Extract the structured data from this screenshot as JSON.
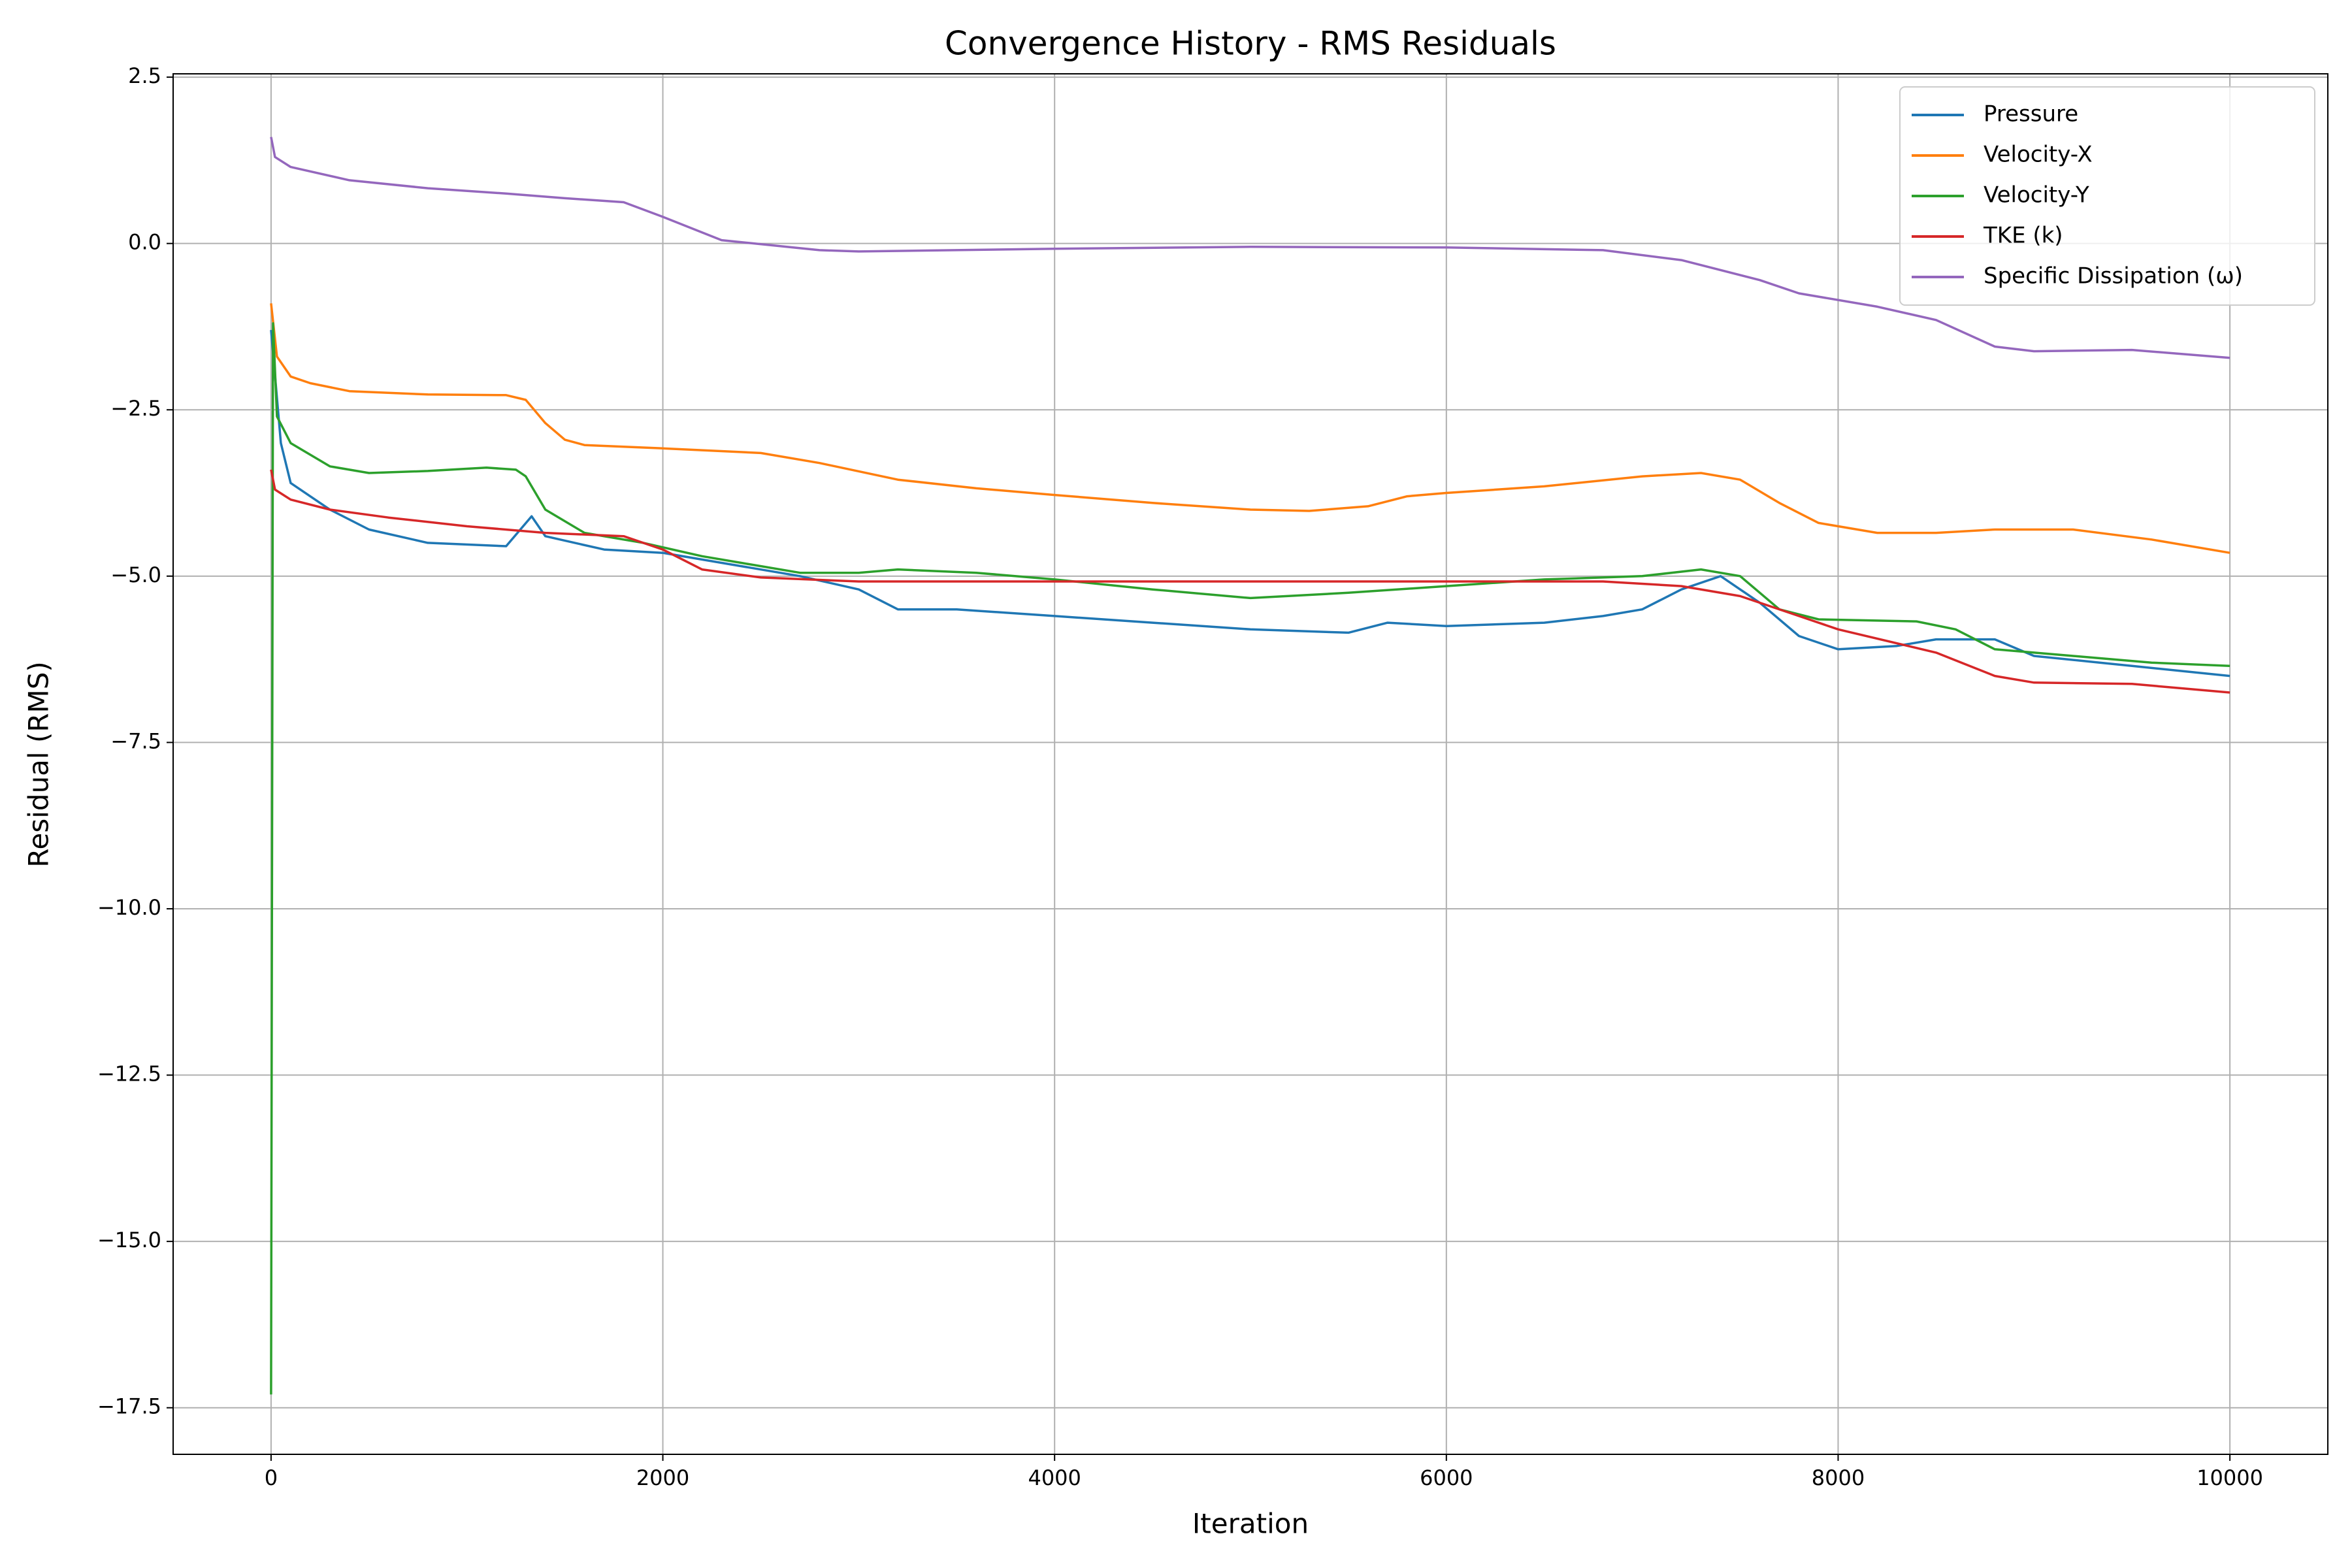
{
  "chart_data": {
    "type": "line",
    "title": "Convergence History - RMS Residuals",
    "x_label": "Iteration",
    "y_label": "Residual (RMS)",
    "xlim": [
      -500,
      10500
    ],
    "ylim": [
      -18.2,
      2.55
    ],
    "xticks": [
      0,
      2000,
      4000,
      6000,
      8000,
      10000
    ],
    "yticks": [
      2.5,
      {
        "value": 0,
        "label": "0.0"
      },
      {
        "value": -2.5,
        "label": "−2.5"
      },
      {
        "value": -5,
        "label": "−5.0"
      },
      {
        "value": -7.5,
        "label": "−7.5"
      },
      {
        "value": -10,
        "label": "−10.0"
      },
      {
        "value": -12.5,
        "label": "−12.5"
      },
      {
        "value": -15,
        "label": "−15.0"
      },
      {
        "value": -17.5,
        "label": "−17.5"
      }
    ],
    "grid": true,
    "legend": "upper right",
    "series": [
      {
        "name": "Pressure",
        "color": "#1f77b4",
        "x": [
          0,
          50,
          100,
          300,
          500,
          800,
          1200,
          1330,
          1400,
          1700,
          2000,
          2300,
          2700,
          3000,
          3200,
          3500,
          4000,
          4500,
          5000,
          5500,
          5700,
          6000,
          6500,
          6800,
          7000,
          7200,
          7400,
          7600,
          7800,
          8000,
          8300,
          8500,
          8800,
          9000,
          9500,
          10000
        ],
        "values": [
          -1.3,
          -3.0,
          -3.6,
          -4.0,
          -4.3,
          -4.5,
          -4.55,
          -4.1,
          -4.4,
          -4.6,
          -4.65,
          -4.8,
          -5.0,
          -5.2,
          -5.5,
          -5.5,
          -5.6,
          -5.7,
          -5.8,
          -5.85,
          -5.7,
          -5.75,
          -5.7,
          -5.6,
          -5.5,
          -5.2,
          -5.0,
          -5.4,
          -5.9,
          -6.1,
          -6.05,
          -5.95,
          -5.95,
          -6.2,
          -6.35,
          -6.5
        ]
      },
      {
        "name": "Velocity-X",
        "color": "#ff7f0e",
        "x": [
          0,
          30,
          100,
          200,
          400,
          800,
          1200,
          1300,
          1400,
          1500,
          1600,
          2000,
          2500,
          2800,
          3200,
          3600,
          4000,
          4500,
          5000,
          5300,
          5600,
          5800,
          6000,
          6500,
          7000,
          7300,
          7500,
          7700,
          7900,
          8200,
          8500,
          8800,
          9200,
          9600,
          10000
        ],
        "values": [
          -0.9,
          -1.7,
          -2.0,
          -2.1,
          -2.22,
          -2.27,
          -2.28,
          -2.35,
          -2.7,
          -2.95,
          -3.03,
          -3.08,
          -3.15,
          -3.3,
          -3.55,
          -3.68,
          -3.78,
          -3.9,
          -4.0,
          -4.02,
          -3.95,
          -3.8,
          -3.75,
          -3.65,
          -3.5,
          -3.45,
          -3.55,
          -3.9,
          -4.2,
          -4.35,
          -4.35,
          -4.3,
          -4.3,
          -4.45,
          -4.65
        ]
      },
      {
        "name": "Velocity-Y",
        "color": "#2ca02c",
        "x": [
          0,
          10,
          30,
          100,
          300,
          500,
          800,
          1100,
          1250,
          1300,
          1400,
          1600,
          1900,
          2200,
          2400,
          2700,
          3000,
          3200,
          3600,
          4000,
          4500,
          5000,
          5500,
          6000,
          6500,
          7000,
          7300,
          7500,
          7700,
          7900,
          8400,
          8600,
          8800,
          9200,
          9600,
          10000
        ],
        "values": [
          -17.3,
          -1.2,
          -2.6,
          -3.0,
          -3.35,
          -3.45,
          -3.42,
          -3.37,
          -3.4,
          -3.5,
          -4.0,
          -4.35,
          -4.5,
          -4.7,
          -4.8,
          -4.95,
          -4.95,
          -4.9,
          -4.95,
          -5.05,
          -5.2,
          -5.33,
          -5.25,
          -5.15,
          -5.05,
          -5.0,
          -4.9,
          -5.0,
          -5.5,
          -5.65,
          -5.68,
          -5.8,
          -6.1,
          -6.2,
          -6.3,
          -6.35
        ]
      },
      {
        "name": "TKE (k)",
        "color": "#d62728",
        "x": [
          0,
          20,
          100,
          300,
          600,
          1000,
          1400,
          1800,
          2000,
          2200,
          2500,
          3000,
          4000,
          5000,
          6000,
          6800,
          7200,
          7500,
          7800,
          8000,
          8500,
          8800,
          9000,
          9500,
          10000
        ],
        "values": [
          -3.4,
          -3.7,
          -3.85,
          -4.0,
          -4.12,
          -4.25,
          -4.35,
          -4.4,
          -4.6,
          -4.9,
          -5.02,
          -5.08,
          -5.08,
          -5.08,
          -5.08,
          -5.08,
          -5.15,
          -5.3,
          -5.6,
          -5.8,
          -6.15,
          -6.5,
          -6.6,
          -6.62,
          -6.75
        ]
      },
      {
        "name": "Specific Dissipation (ω)",
        "color": "#9467bd",
        "x": [
          0,
          20,
          100,
          400,
          800,
          1200,
          1500,
          1800,
          2000,
          2300,
          2800,
          3000,
          4000,
          5000,
          6000,
          6800,
          7200,
          7600,
          7800,
          8200,
          8500,
          8800,
          9000,
          9500,
          10000
        ],
        "values": [
          1.6,
          1.3,
          1.15,
          0.95,
          0.83,
          0.75,
          0.68,
          0.62,
          0.4,
          0.05,
          -0.1,
          -0.12,
          -0.08,
          -0.05,
          -0.06,
          -0.1,
          -0.25,
          -0.55,
          -0.75,
          -0.95,
          -1.15,
          -1.55,
          -1.62,
          -1.6,
          -1.72
        ]
      }
    ]
  }
}
